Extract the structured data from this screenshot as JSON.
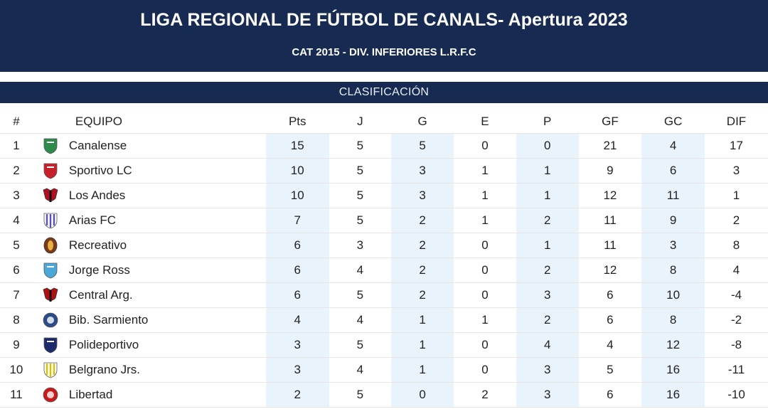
{
  "header": {
    "title": "LIGA REGIONAL DE FÚTBOL DE CANALS- Apertura 2023",
    "subtitle": "CAT 2015 - DIV. INFERIORES L.R.F.C"
  },
  "section": {
    "label": "CLASIFICACIÓN"
  },
  "table": {
    "columns": [
      "#",
      "EQUIPO",
      "Pts",
      "J",
      "G",
      "E",
      "P",
      "GF",
      "GC",
      "DIF"
    ],
    "rows": [
      {
        "pos": "1",
        "team": "Canalense",
        "icon": "canalense-crest-icon",
        "color": "#2e8b4a",
        "pts": "15",
        "j": "5",
        "g": "5",
        "e": "0",
        "p": "0",
        "gf": "21",
        "gc": "4",
        "dif": "17"
      },
      {
        "pos": "2",
        "team": "Sportivo LC",
        "icon": "sportivo-lc-crest-icon",
        "color": "#c8202a",
        "pts": "10",
        "j": "5",
        "g": "3",
        "e": "1",
        "p": "1",
        "gf": "9",
        "gc": "6",
        "dif": "3"
      },
      {
        "pos": "3",
        "team": "Los Andes",
        "icon": "los-andes-crest-icon",
        "color": "#b01020",
        "pts": "10",
        "j": "5",
        "g": "3",
        "e": "1",
        "p": "1",
        "gf": "12",
        "gc": "11",
        "dif": "1"
      },
      {
        "pos": "4",
        "team": "Arias FC",
        "icon": "arias-fc-crest-icon",
        "color": "#5b4fc0",
        "pts": "7",
        "j": "5",
        "g": "2",
        "e": "1",
        "p": "2",
        "gf": "11",
        "gc": "9",
        "dif": "2"
      },
      {
        "pos": "5",
        "team": "Recreativo",
        "icon": "recreativo-crest-icon",
        "color": "#7a3a1a",
        "pts": "6",
        "j": "3",
        "g": "2",
        "e": "0",
        "p": "1",
        "gf": "11",
        "gc": "3",
        "dif": "8"
      },
      {
        "pos": "6",
        "team": "Jorge Ross",
        "icon": "jorge-ross-crest-icon",
        "color": "#4aa8d8",
        "pts": "6",
        "j": "4",
        "g": "2",
        "e": "0",
        "p": "2",
        "gf": "12",
        "gc": "8",
        "dif": "4"
      },
      {
        "pos": "7",
        "team": "Central Arg.",
        "icon": "central-arg-crest-icon",
        "color": "#b01010",
        "pts": "6",
        "j": "5",
        "g": "2",
        "e": "0",
        "p": "3",
        "gf": "6",
        "gc": "10",
        "dif": "-4"
      },
      {
        "pos": "8",
        "team": "Bib. Sarmiento",
        "icon": "bib-sarmiento-crest-icon",
        "color": "#2a4a8a",
        "pts": "4",
        "j": "4",
        "g": "1",
        "e": "1",
        "p": "2",
        "gf": "6",
        "gc": "8",
        "dif": "-2"
      },
      {
        "pos": "9",
        "team": "Polideportivo",
        "icon": "polideportivo-crest-icon",
        "color": "#1a2a6a",
        "pts": "3",
        "j": "5",
        "g": "1",
        "e": "0",
        "p": "4",
        "gf": "4",
        "gc": "12",
        "dif": "-8"
      },
      {
        "pos": "10",
        "team": "Belgrano Jrs.",
        "icon": "belgrano-jrs-crest-icon",
        "color": "#d8c000",
        "pts": "3",
        "j": "4",
        "g": "1",
        "e": "0",
        "p": "3",
        "gf": "5",
        "gc": "16",
        "dif": "-11"
      },
      {
        "pos": "11",
        "team": "Libertad",
        "icon": "libertad-crest-icon",
        "color": "#c81a1a",
        "pts": "2",
        "j": "5",
        "g": "0",
        "e": "2",
        "p": "3",
        "gf": "6",
        "gc": "16",
        "dif": "-10"
      }
    ]
  },
  "colors": {
    "header_bg": "#172b52",
    "shaded_column": "#e8f3fb",
    "row_border": "#e6e6e6"
  }
}
